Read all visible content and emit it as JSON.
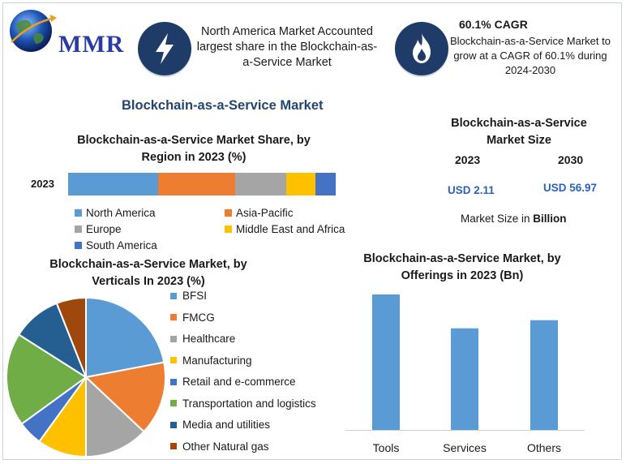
{
  "header": {
    "logo_text": "MMR",
    "north_america_text": "North America Market Accounted largest share in the Blockchain-as-a-Service Market",
    "cagr_title": "60.1% CAGR",
    "cagr_desc": "Blockchain-as-a-Service Market to grow at a CAGR of 60.1% during 2024-2030",
    "icons": [
      "lightning-icon",
      "flame-icon"
    ]
  },
  "main_title": "Blockchain-as-a-Service Market",
  "region_share": {
    "title": "Blockchain-as-a-Service Market Share, by Region in 2023 (%)",
    "year_label": "2023"
  },
  "market_size": {
    "title": "Blockchain-as-a-Service Market Size",
    "year1": "2023",
    "year2": "2030",
    "value1": "USD 2.11",
    "value2": "USD 56.97",
    "unit_prefix": "Market Size in ",
    "unit_bold": "Billion"
  },
  "verticals": {
    "title": "Blockchain-as-a-Service Market, by Verticals In 2023 (%)"
  },
  "offerings": {
    "title": "Blockchain-as-a-Service Market, by Offerings in 2023 (Bn)"
  },
  "chart_data": [
    {
      "type": "bar",
      "stacked": true,
      "orientation": "horizontal",
      "categories": [
        "2023"
      ],
      "series": [
        {
          "name": "North America",
          "values": [
            33.5
          ],
          "color": "#5b9bd5"
        },
        {
          "name": "Asia-Pacific",
          "values": [
            29
          ],
          "color": "#ed7d31"
        },
        {
          "name": "Europe",
          "values": [
            19
          ],
          "color": "#a5a5a5"
        },
        {
          "name": "Middle East and Africa",
          "values": [
            11
          ],
          "color": "#ffc000"
        },
        {
          "name": "South America",
          "values": [
            7.5
          ],
          "color": "#4472c4"
        }
      ],
      "legend": "bottom"
    },
    {
      "type": "pie",
      "labels": [
        "BFSI",
        "FMCG",
        "Healthcare",
        "Manufacturing",
        "Retail and e-commerce",
        "Transportation and logistics",
        "Media and utilities",
        "Other Natural gas"
      ],
      "values": [
        22,
        15,
        13,
        10,
        5,
        19,
        10,
        6
      ],
      "colors": [
        "#5b9bd5",
        "#ed7d31",
        "#a5a5a5",
        "#ffc000",
        "#4472c4",
        "#70ad47",
        "#255e91",
        "#9e480e"
      ],
      "legend": "right"
    },
    {
      "type": "bar",
      "categories": [
        "Tools",
        "Services",
        "Others"
      ],
      "values": [
        100,
        75,
        81
      ],
      "ylim": [
        0,
        100
      ],
      "color": "#5b9bd5",
      "grid": false
    }
  ]
}
